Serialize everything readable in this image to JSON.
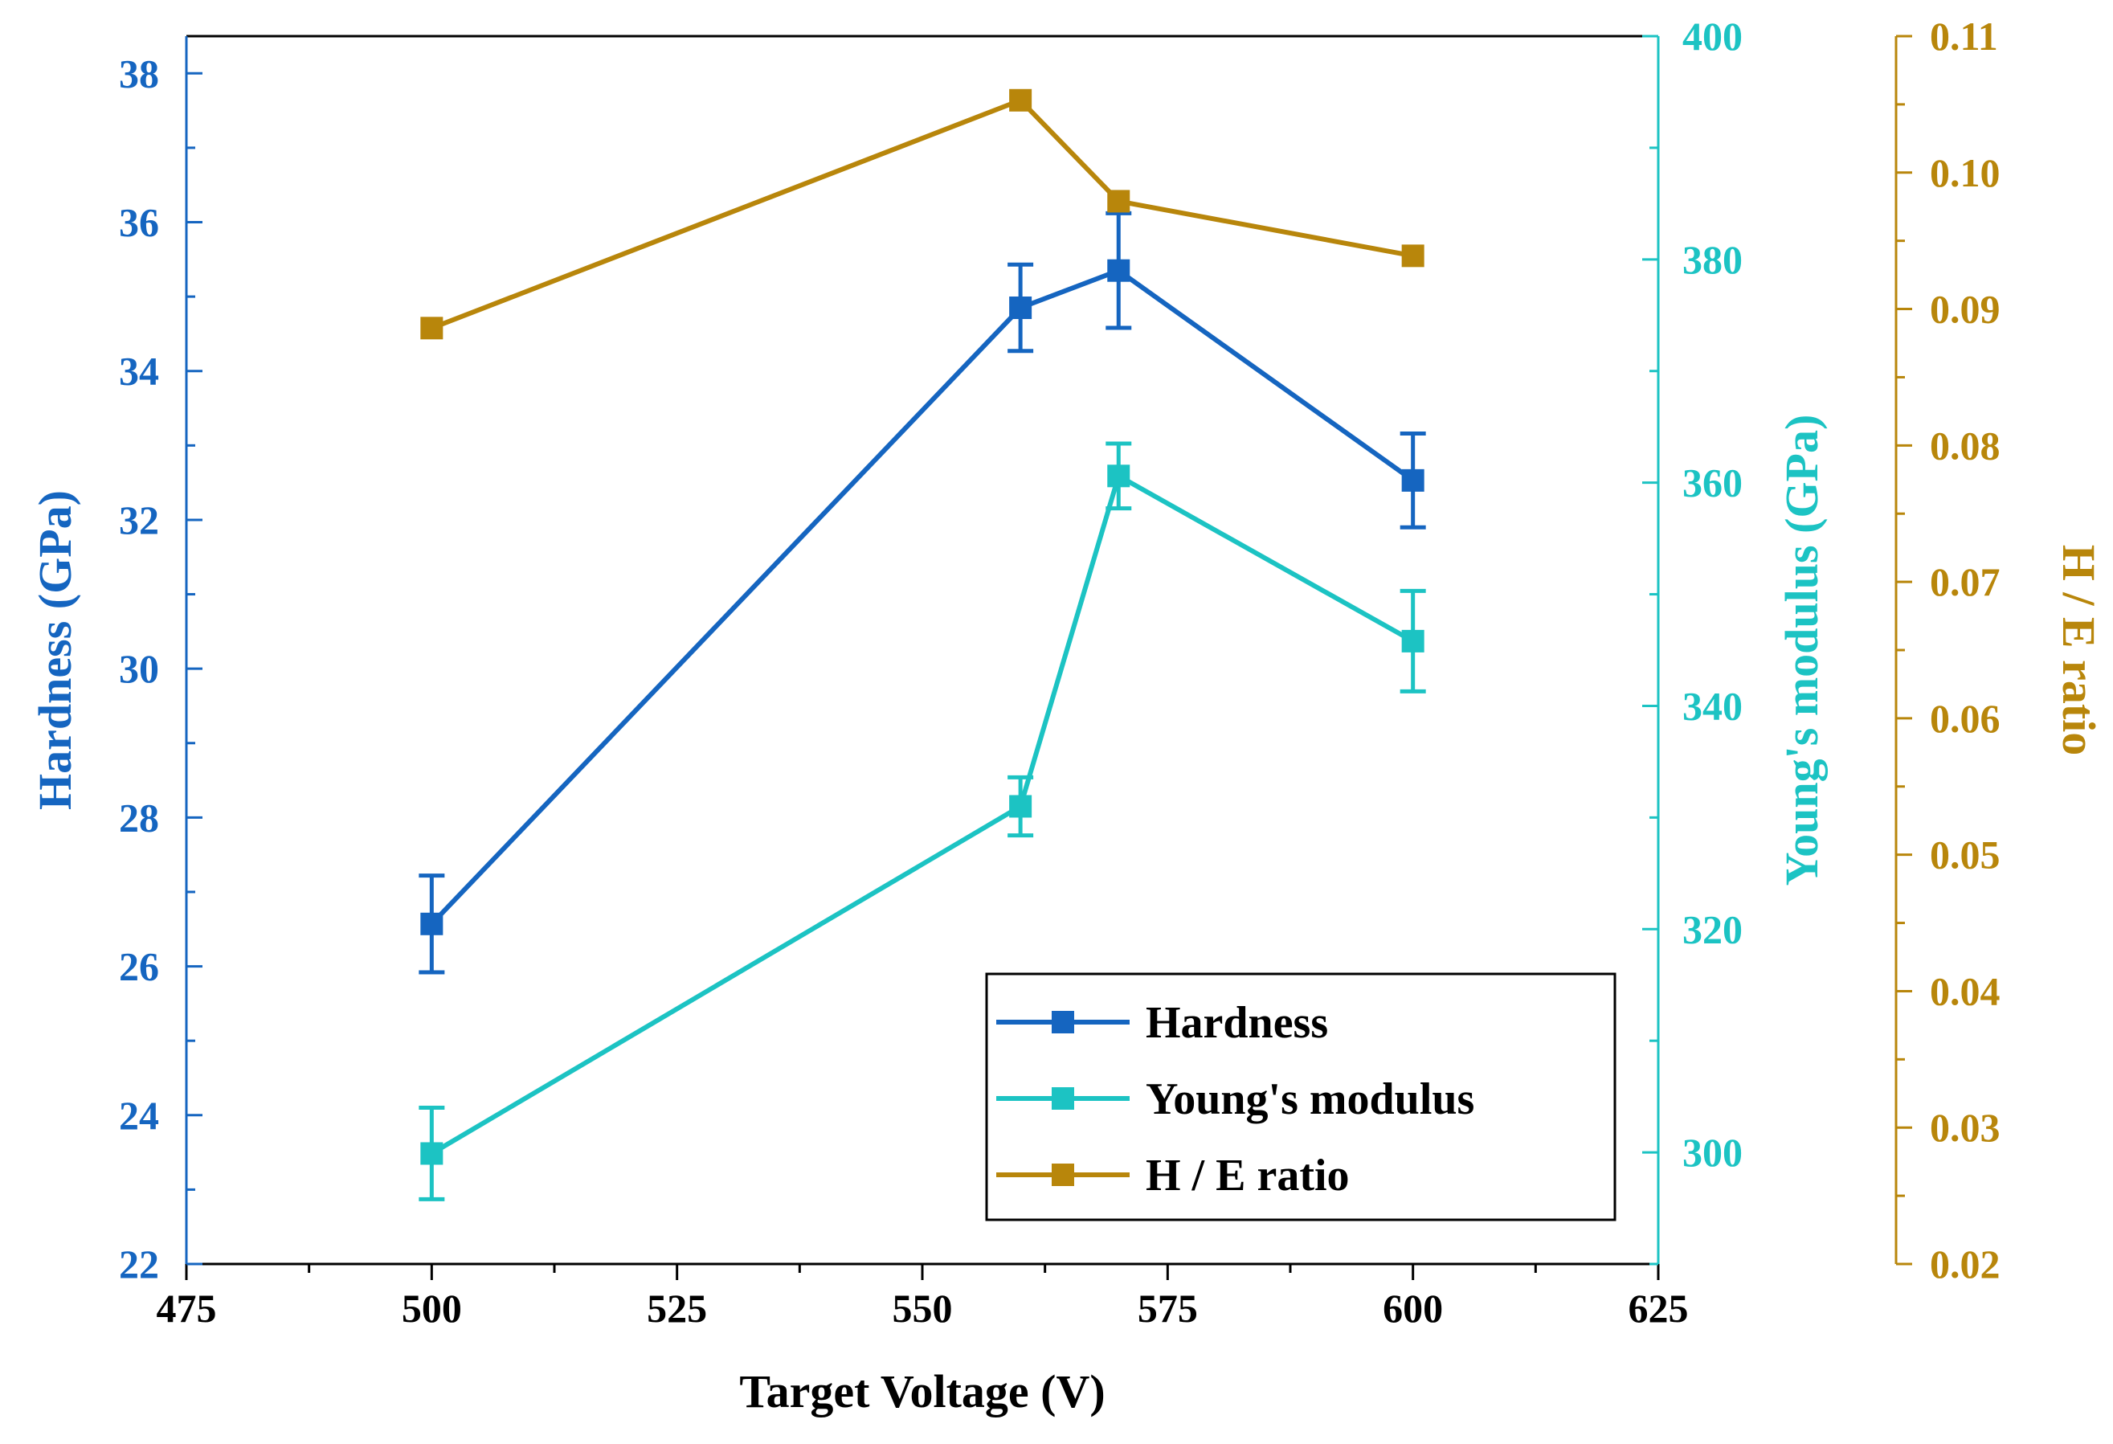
{
  "chart_data": {
    "type": "line",
    "title": "",
    "xlabel": "Target Voltage (V)",
    "xlim": [
      475,
      625
    ],
    "xticks": [
      475,
      500,
      525,
      550,
      575,
      600,
      625
    ],
    "colors": {
      "hardness": "#1565C0",
      "youngs": "#1CC3C3",
      "he": "#B8860B",
      "frame": "#000000"
    },
    "axes": [
      {
        "id": "hardness",
        "label": "Hardness (GPa)",
        "side": "left",
        "ylim": [
          22,
          38.5
        ],
        "ticks": [
          22,
          24,
          26,
          28,
          30,
          32,
          34,
          36,
          38
        ],
        "decimals": 0
      },
      {
        "id": "youngs",
        "label": "Young's modulus (GPa)",
        "side": "right",
        "ylim": [
          290,
          400
        ],
        "ticks": [
          300,
          320,
          340,
          360,
          380,
          400
        ],
        "decimals": 0
      },
      {
        "id": "he",
        "label": "H / E ratio",
        "side": "far-right",
        "ylim": [
          0.02,
          0.11
        ],
        "ticks": [
          0.02,
          0.03,
          0.04,
          0.05,
          0.06,
          0.07,
          0.08,
          0.09,
          0.1,
          0.11
        ],
        "decimals": 2
      }
    ],
    "series": [
      {
        "name": "Hardness",
        "axis": "hardness",
        "x": [
          500,
          560,
          570,
          600
        ],
        "values": [
          26.57,
          34.85,
          35.35,
          32.53
        ],
        "errors": [
          0.65,
          0.58,
          0.77,
          0.63
        ]
      },
      {
        "name": "Young's modulus",
        "axis": "youngs",
        "x": [
          500,
          560,
          570,
          600
        ],
        "values": [
          299.9,
          331.0,
          360.6,
          345.8
        ],
        "errors": [
          4.1,
          2.6,
          2.9,
          4.5
        ]
      },
      {
        "name": "H / E ratio",
        "axis": "he",
        "x": [
          500,
          560,
          570,
          600
        ],
        "values": [
          0.0886,
          0.1053,
          0.0979,
          0.0939
        ],
        "errors": null
      }
    ],
    "legend": {
      "placement": "bottom-right",
      "entries": [
        "Hardness",
        "Young's modulus",
        "H / E ratio"
      ]
    }
  }
}
